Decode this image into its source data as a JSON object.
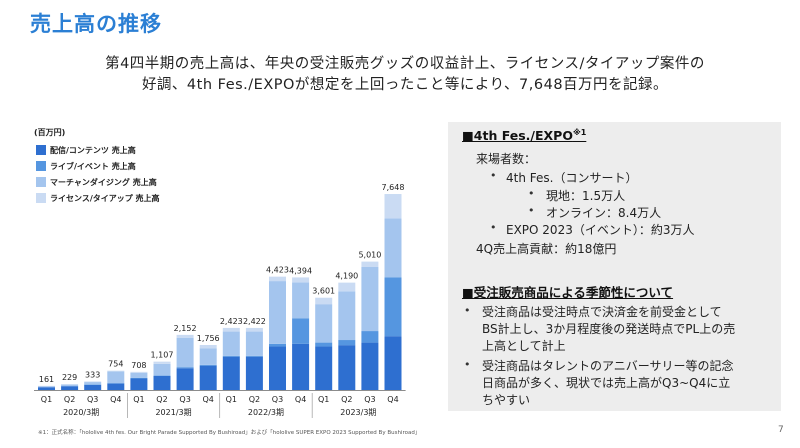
{
  "title": "売上高の推移",
  "summary": {
    "line1": "第4四半期の売上高は、年央の受注販売グッズの収益計上、ライセンス/タイアップ案件の",
    "line2": "好調、4th Fes./EXPOが想定を上回ったこと等により、7,648百万円を記録。"
  },
  "chart_unit": "(百万円)",
  "legend": [
    {
      "label": "配信/コンテンツ 売上高",
      "color": "#2E6FD0"
    },
    {
      "label": "ライブ/イベント 売上高",
      "color": "#5596E0"
    },
    {
      "label": "マーチャンダイジング 売上高",
      "color": "#A4C5EE"
    },
    {
      "label": "ライセンス/タイアップ 売上高",
      "color": "#CADBF3"
    }
  ],
  "chart_data": {
    "type": "bar",
    "stacked": true,
    "categories": [
      "Q1",
      "Q2",
      "Q3",
      "Q4",
      "Q1",
      "Q2",
      "Q3",
      "Q4",
      "Q1",
      "Q2",
      "Q3",
      "Q4",
      "Q1",
      "Q2",
      "Q3",
      "Q4"
    ],
    "fiscal_years": [
      {
        "label": "2020/3期",
        "from": 0,
        "to": 3
      },
      {
        "label": "2021/3期",
        "from": 4,
        "to": 7
      },
      {
        "label": "2022/3期",
        "from": 8,
        "to": 11
      },
      {
        "label": "2023/3期",
        "from": 12,
        "to": 15
      }
    ],
    "totals": [
      161,
      229,
      333,
      754,
      708,
      1107,
      2152,
      1756,
      2423,
      2422,
      4423,
      4394,
      3601,
      4190,
      5010,
      7648
    ],
    "total_labels": [
      "161",
      "229",
      "333",
      "754",
      "708",
      "1,107",
      "2,152",
      "1,756",
      "2,423",
      "2,422",
      "4,423",
      "4,394",
      "3,601",
      "4,190",
      "5,010",
      "7,648"
    ],
    "series": [
      {
        "name": "配信/コンテンツ 売上高",
        "color": "#2E6FD0",
        "values": [
          110,
          150,
          200,
          250,
          450,
          550,
          850,
          950,
          1300,
          1300,
          1700,
          1800,
          1700,
          1750,
          1850,
          2100
        ]
      },
      {
        "name": "ライブ/イベント 売上高",
        "color": "#5596E0",
        "values": [
          0,
          0,
          20,
          20,
          20,
          20,
          40,
          30,
          30,
          30,
          100,
          1000,
          150,
          200,
          450,
          2300
        ]
      },
      {
        "name": "マーチャンダイジング 売上高",
        "color": "#A4C5EE",
        "values": [
          40,
          60,
          90,
          450,
          200,
          450,
          1150,
          650,
          950,
          950,
          2450,
          1400,
          1500,
          1900,
          2500,
          2300
        ]
      },
      {
        "name": "ライセンス/タイアップ 売上高",
        "color": "#CADBF3",
        "values": [
          11,
          19,
          23,
          34,
          38,
          87,
          112,
          126,
          143,
          142,
          173,
          194,
          251,
          340,
          210,
          948
        ]
      }
    ],
    "ylim": [
      0,
      8000
    ],
    "title": "",
    "xlabel": "",
    "ylabel": "百万円"
  },
  "footnote": "※1：正式名称：「hololive 4th fes. Our Bright Parade Supported By Bushiroad」および「hololive SUPER EXPO 2023 Supported By Bushiroad」",
  "panel": {
    "section1": {
      "heading": "■4th Fes./EXPO",
      "heading_sup": "※1",
      "visitors_label": "来場者数：",
      "fes_label": "4th Fes.（コンサート）",
      "onsite": "現地：1.5万人",
      "online": "オンライン：8.4万人",
      "expo": "EXPO 2023（イベント）：約3万人",
      "contribution": "4Q売上高貢献：約18億円"
    },
    "section2": {
      "heading": "■受注販売商品による季節性について",
      "b1_l1": "受注商品は受注時点で決済金を前受金として",
      "b1_l2": "BS計上し、3か月程度後の発送時点でPL上の売",
      "b1_l3": "上高として計上",
      "b2_l1": "受注商品はタレントのアニバーサリー等の記念",
      "b2_l2": "日商品が多く、現状では売上高がQ3~Q4に立",
      "b2_l3": "ちやすい"
    }
  },
  "page_number": "7"
}
